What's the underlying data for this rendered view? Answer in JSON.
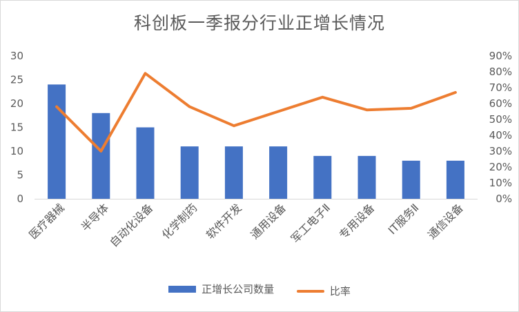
{
  "chart_data": {
    "type": "bar",
    "title": "科创板一季报分行业正增长情况",
    "categories": [
      "医疗器械",
      "半导体",
      "自动化设备",
      "化学制药",
      "软件开发",
      "通用设备",
      "军工电子Ⅱ",
      "专用设备",
      "IT服务Ⅱ",
      "通信设备"
    ],
    "series": [
      {
        "name": "正增长公司数量",
        "type": "bar",
        "axis": "left",
        "color": "#4472C4",
        "values": [
          24,
          18,
          15,
          11,
          11,
          11,
          9,
          9,
          8,
          8
        ]
      },
      {
        "name": "比率",
        "type": "line",
        "axis": "right",
        "color": "#ED7D31",
        "values": [
          0.58,
          0.3,
          0.79,
          0.58,
          0.46,
          0.55,
          0.64,
          0.56,
          0.57,
          0.67
        ]
      }
    ],
    "y_left": {
      "ylim": [
        0,
        30
      ],
      "ticks": [
        "0",
        "5",
        "10",
        "15",
        "20",
        "25",
        "30"
      ]
    },
    "y_right": {
      "ylim": [
        0,
        0.9
      ],
      "ticks": [
        "0%",
        "10%",
        "20%",
        "30%",
        "40%",
        "50%",
        "60%",
        "70%",
        "80%",
        "90%"
      ]
    },
    "grid": false,
    "legend": "bottom"
  }
}
